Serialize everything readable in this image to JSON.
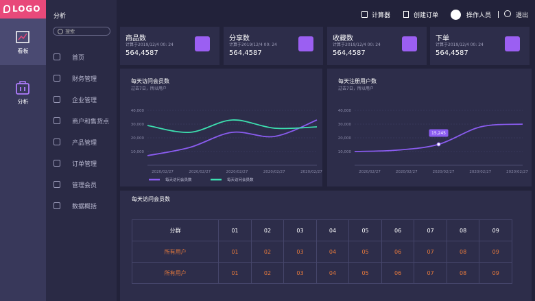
{
  "sidebar": {
    "logo": "LOGO",
    "items": [
      "看板",
      "分析"
    ]
  },
  "menu": {
    "title": "分析",
    "search": "搜索",
    "items": [
      "首页",
      "财务管理",
      "企业管理",
      "商户和售货点",
      "产品管理",
      "订单管理",
      "管理会员",
      "数据概括"
    ]
  },
  "topbar": {
    "calculator": "计算器",
    "create_order": "创建订单",
    "user": "操作人员",
    "logout": "退出"
  },
  "cards": [
    {
      "title": "商品数",
      "subtitle": "计算于2019/12/4 00: 24",
      "value": "564,4587"
    },
    {
      "title": "分享数",
      "subtitle": "计算于2019/12/4 00: 24",
      "value": "564,4587"
    },
    {
      "title": "收藏数",
      "subtitle": "计算于2019/12/4 00: 24",
      "value": "564,4587"
    },
    {
      "title": "下单",
      "subtitle": "计算于2019/12/4 00: 24",
      "value": "564,4587"
    }
  ],
  "chart_data": [
    {
      "type": "line",
      "title": "每天访问会员数",
      "subtitle": "过去7日，所以用户",
      "categories": [
        "2020/02/27",
        "2020/02/27",
        "2020/02/27",
        "2020/02/27",
        "2020/02/27"
      ],
      "series": [
        {
          "name": "每天访问会员数",
          "color": "#8a5cf0",
          "values": [
            7000,
            13000,
            24000,
            21000,
            33000
          ]
        },
        {
          "name": "每天访问会员数",
          "color": "#3de0b0",
          "values": [
            29000,
            24000,
            33000,
            27000,
            28000
          ]
        }
      ],
      "ylim": [
        0,
        40000
      ],
      "yticks": [
        {
          "value": 10000,
          "label": "10,000"
        },
        {
          "value": 20000,
          "label": "20,000"
        },
        {
          "value": 30000,
          "label": "30,000"
        },
        {
          "value": 40000,
          "label": "40,000"
        }
      ],
      "grid": true,
      "legend": "bottom"
    },
    {
      "type": "line",
      "title": "每天注册用户数",
      "subtitle": "过去7日，所以用户",
      "categories": [
        "2020/02/27",
        "2020/02/27",
        "2020/02/27",
        "2020/02/27",
        "2020/02/27"
      ],
      "series": [
        {
          "color": "#8a5cf0",
          "values": [
            10000,
            11000,
            15245,
            28000,
            30000
          ],
          "value_labels": [
            null,
            null,
            "15,245",
            null,
            null
          ]
        }
      ],
      "ylim": [
        0,
        40000
      ],
      "yticks": [
        {
          "value": 10000,
          "label": "10,000"
        },
        {
          "value": 20000,
          "label": "20,000"
        },
        {
          "value": 30000,
          "label": "30,000"
        },
        {
          "value": 40000,
          "label": "40,000"
        }
      ],
      "grid": true
    }
  ],
  "table": {
    "title": "每天访问会员数",
    "header": [
      "分群",
      "01",
      "02",
      "03",
      "04",
      "05",
      "06",
      "07",
      "08",
      "09"
    ],
    "rows": [
      [
        "所有用户",
        "01",
        "02",
        "03",
        "04",
        "05",
        "06",
        "07",
        "08",
        "09"
      ],
      [
        "所有用户",
        "01",
        "02",
        "03",
        "04",
        "05",
        "06",
        "07",
        "08",
        "09"
      ]
    ]
  }
}
